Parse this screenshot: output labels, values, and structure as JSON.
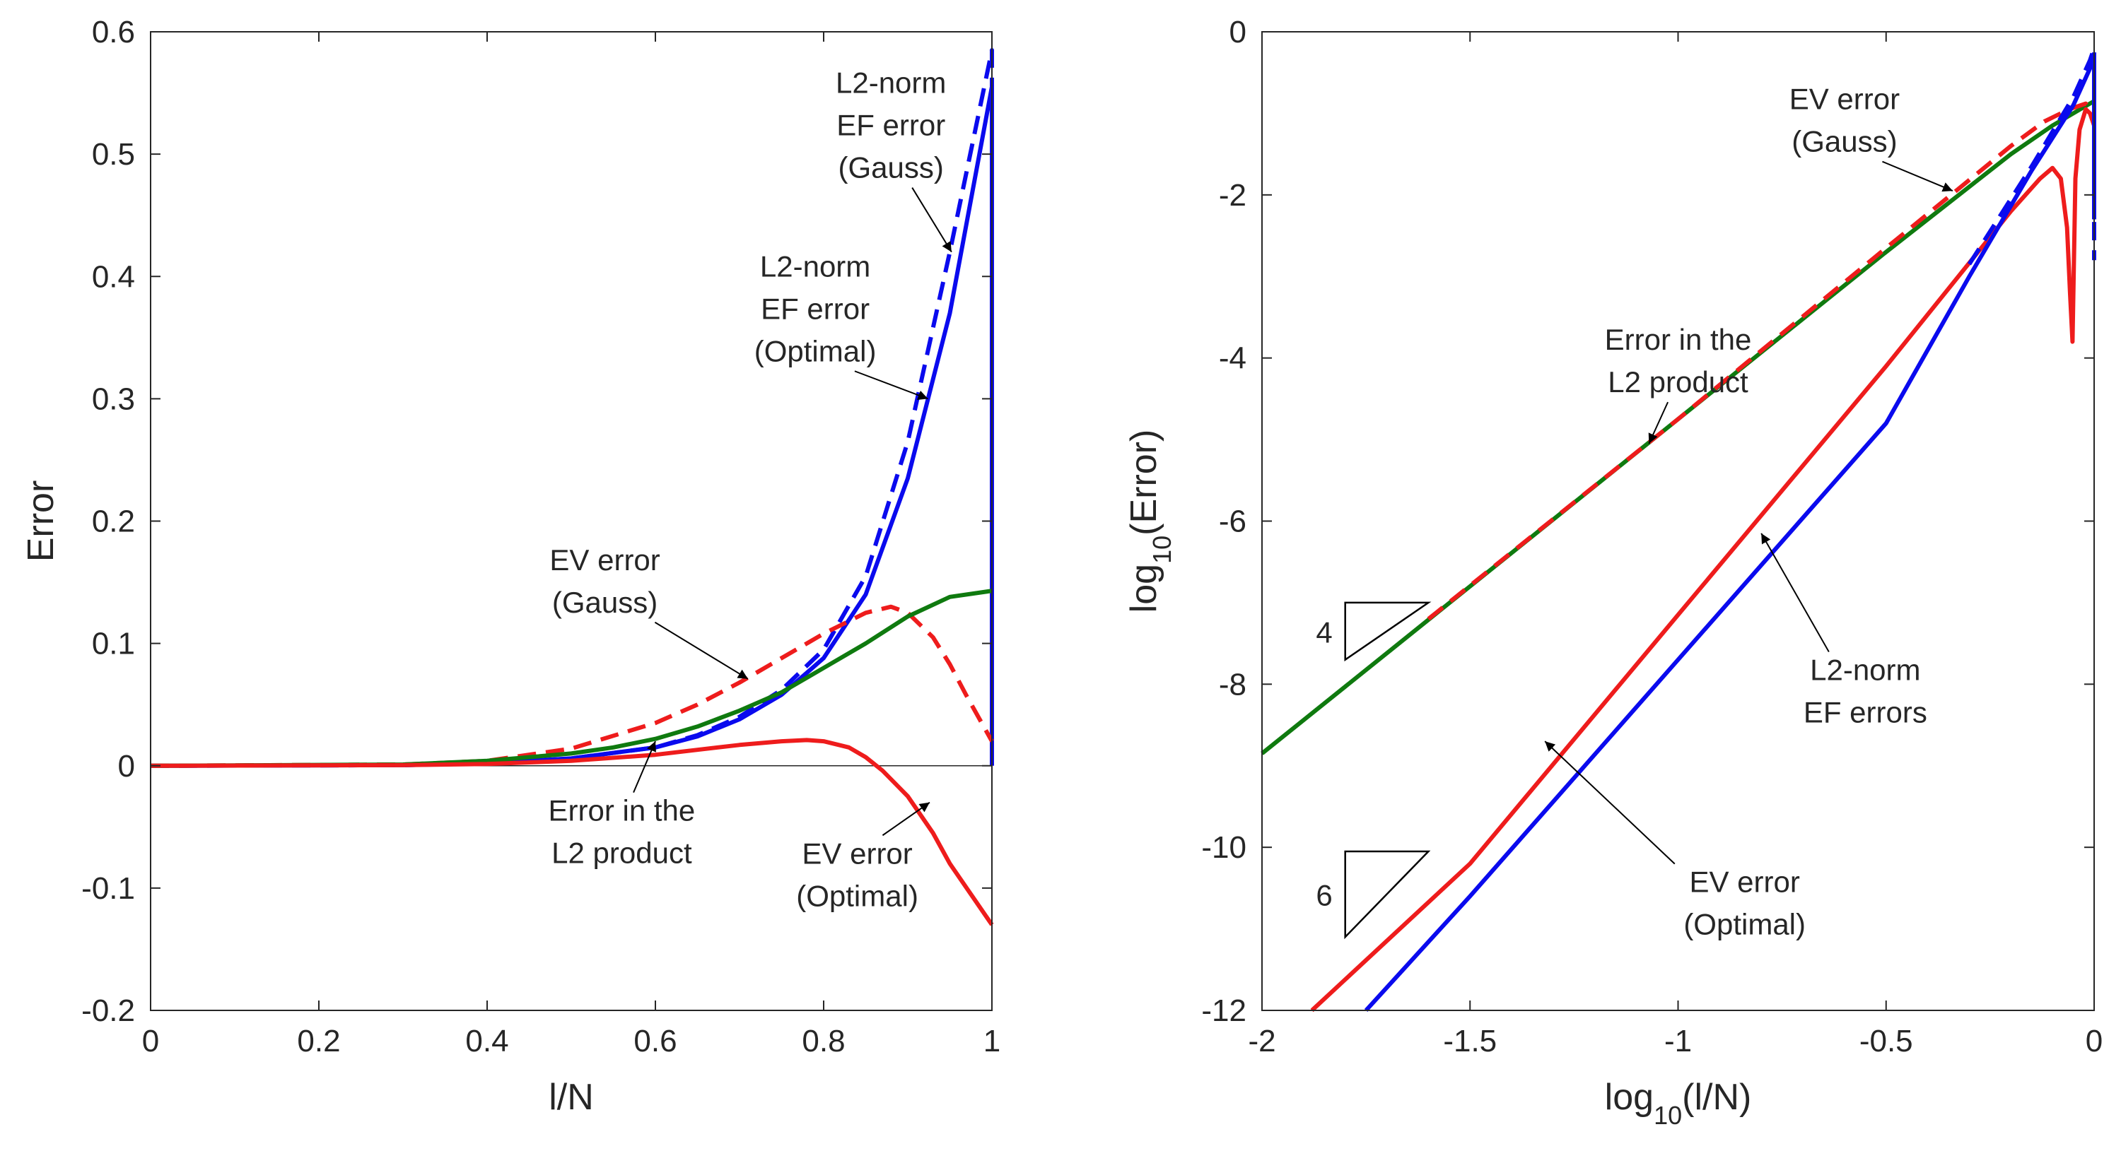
{
  "colors": {
    "blue": "#0a0aee",
    "red": "#ee1c1c",
    "green": "#0f7a0f",
    "axis": "#262626"
  },
  "chart_data": [
    {
      "type": "line",
      "xlabel": "l/N",
      "ylabel": "Error",
      "xlim": [
        0,
        1
      ],
      "ylim": [
        -0.2,
        0.6
      ],
      "xticks": [
        {
          "v": 0,
          "label": "0"
        },
        {
          "v": 0.2,
          "label": "0.2"
        },
        {
          "v": 0.4,
          "label": "0.4"
        },
        {
          "v": 0.6,
          "label": "0.6"
        },
        {
          "v": 0.8,
          "label": "0.8"
        },
        {
          "v": 1,
          "label": "1"
        }
      ],
      "yticks": [
        {
          "v": -0.2,
          "label": "-0.2"
        },
        {
          "v": -0.1,
          "label": "-0.1"
        },
        {
          "v": 0,
          "label": "0"
        },
        {
          "v": 0.1,
          "label": "0.1"
        },
        {
          "v": 0.2,
          "label": "0.2"
        },
        {
          "v": 0.3,
          "label": "0.3"
        },
        {
          "v": 0.4,
          "label": "0.4"
        },
        {
          "v": 0.5,
          "label": "0.5"
        },
        {
          "v": 0.6,
          "label": "0.6"
        }
      ],
      "zero_line": true,
      "series": [
        {
          "name": "L2-norm EF error (Gauss)",
          "color": "blue",
          "dash": true,
          "x": [
            0,
            0.3,
            0.4,
            0.5,
            0.6,
            0.65,
            0.7,
            0.75,
            0.8,
            0.85,
            0.9,
            0.95,
            1.0,
            1.0
          ],
          "y": [
            0,
            0.0005,
            0.002,
            0.006,
            0.015,
            0.025,
            0.04,
            0.062,
            0.095,
            0.155,
            0.265,
            0.42,
            0.585,
            0
          ]
        },
        {
          "name": "L2-norm EF error (Optimal)",
          "color": "blue",
          "dash": false,
          "x": [
            0,
            0.3,
            0.4,
            0.5,
            0.6,
            0.65,
            0.7,
            0.75,
            0.8,
            0.85,
            0.9,
            0.95,
            1.0,
            1.0
          ],
          "y": [
            0,
            0.0005,
            0.002,
            0.006,
            0.015,
            0.024,
            0.038,
            0.058,
            0.088,
            0.14,
            0.235,
            0.37,
            0.555,
            0.005
          ]
        },
        {
          "name": "EV error (Gauss)",
          "color": "red",
          "dash": true,
          "x": [
            0,
            0.3,
            0.4,
            0.5,
            0.6,
            0.65,
            0.7,
            0.75,
            0.8,
            0.85,
            0.88,
            0.9,
            0.93,
            0.95,
            0.97,
            1.0
          ],
          "y": [
            0,
            0.001,
            0.004,
            0.014,
            0.035,
            0.05,
            0.068,
            0.088,
            0.108,
            0.125,
            0.13,
            0.125,
            0.105,
            0.083,
            0.057,
            0.02
          ]
        },
        {
          "name": "Error in the L2 product",
          "color": "green",
          "dash": false,
          "x": [
            0,
            0.3,
            0.4,
            0.5,
            0.55,
            0.6,
            0.65,
            0.7,
            0.75,
            0.8,
            0.85,
            0.9,
            0.95,
            1.0
          ],
          "y": [
            0,
            0.001,
            0.004,
            0.01,
            0.015,
            0.022,
            0.032,
            0.045,
            0.06,
            0.08,
            0.1,
            0.122,
            0.138,
            0.143
          ]
        },
        {
          "name": "EV error (Optimal)",
          "color": "red",
          "dash": false,
          "x": [
            0,
            0.3,
            0.4,
            0.5,
            0.6,
            0.65,
            0.7,
            0.75,
            0.78,
            0.8,
            0.83,
            0.85,
            0.87,
            0.9,
            0.93,
            0.95,
            0.97,
            1.0
          ],
          "y": [
            0,
            0.0005,
            0.0015,
            0.004,
            0.009,
            0.013,
            0.017,
            0.02,
            0.021,
            0.02,
            0.015,
            0.007,
            -0.004,
            -0.025,
            -0.055,
            -0.08,
            -0.1,
            -0.13
          ]
        }
      ],
      "annotations": [
        {
          "lines": [
            "L2-norm",
            "EF error",
            "(Gauss)"
          ],
          "tx": 0.88,
          "ty": 0.55,
          "ax": 0.952,
          "ay": 0.42
        },
        {
          "lines": [
            "L2-norm",
            "EF error",
            "(Optimal)"
          ],
          "tx": 0.79,
          "ty": 0.4,
          "ax": 0.924,
          "ay": 0.3
        },
        {
          "lines": [
            "EV error",
            "(Gauss)"
          ],
          "tx": 0.54,
          "ty": 0.16,
          "ax": 0.71,
          "ay": 0.071
        },
        {
          "lines": [
            "Error in the",
            "L2 product"
          ],
          "tx": 0.56,
          "ty": -0.045,
          "ax": 0.6,
          "ay": 0.02
        },
        {
          "lines": [
            "EV error",
            "(Optimal)"
          ],
          "tx": 0.84,
          "ty": -0.08,
          "ax": 0.926,
          "ay": -0.03
        }
      ]
    },
    {
      "type": "line",
      "xlabel": "log10(l/N)",
      "ylabel": "log10(Error)",
      "xlim": [
        -2,
        0
      ],
      "ylim": [
        -12,
        0
      ],
      "xticks": [
        {
          "v": -2,
          "label": "-2"
        },
        {
          "v": -1.5,
          "label": "-1.5"
        },
        {
          "v": -1,
          "label": "-1"
        },
        {
          "v": -0.5,
          "label": "-0.5"
        },
        {
          "v": 0,
          "label": "0"
        }
      ],
      "yticks": [
        {
          "v": -12,
          "label": "-12"
        },
        {
          "v": -10,
          "label": "-10"
        },
        {
          "v": -8,
          "label": "-8"
        },
        {
          "v": -6,
          "label": "-6"
        },
        {
          "v": -4,
          "label": "-4"
        },
        {
          "v": -2,
          "label": "-2"
        },
        {
          "v": 0,
          "label": "0"
        }
      ],
      "series": [
        {
          "name": "Error in the L2 product",
          "color": "green",
          "dash": false,
          "x": [
            -2,
            -1.5,
            -1,
            -0.5,
            -0.2,
            -0.1,
            0
          ],
          "y": [
            -8.85,
            -6.8,
            -4.75,
            -2.7,
            -1.5,
            -1.15,
            -0.85
          ]
        },
        {
          "name": "EV error (Gauss)",
          "color": "red",
          "dash": true,
          "x": [
            -1.6,
            -1,
            -0.5,
            -0.2,
            -0.12,
            -0.06,
            -0.02,
            0
          ],
          "y": [
            -7.2,
            -4.75,
            -2.65,
            -1.4,
            -1.1,
            -0.95,
            -0.88,
            -1.1
          ]
        },
        {
          "name": "EV error (Optimal)",
          "color": "red",
          "dash": false,
          "x": [
            -1.88,
            -1.5,
            -1,
            -0.5,
            -0.2,
            -0.13,
            -0.1,
            -0.08,
            -0.065,
            -0.058,
            -0.052,
            -0.045,
            -0.035,
            -0.02,
            -0.01,
            0
          ],
          "y": [
            -12,
            -10.2,
            -7.15,
            -4.1,
            -2.2,
            -1.8,
            -1.67,
            -1.8,
            -2.4,
            -3.2,
            -3.8,
            -1.8,
            -1.2,
            -0.95,
            -1.0,
            -1.15
          ]
        },
        {
          "name": "L2-norm EF error (Gauss)",
          "color": "blue",
          "dash": true,
          "x": [
            -0.3,
            -0.15,
            -0.05,
            -0.01,
            0,
            0
          ],
          "y": [
            -2.85,
            -1.65,
            -0.8,
            -0.35,
            -0.2,
            -2.8
          ]
        },
        {
          "name": "L2-norm EF error (Optimal)",
          "color": "blue",
          "dash": false,
          "x": [
            -1.75,
            -1.5,
            -1,
            -0.5,
            -0.3,
            -0.15,
            -0.05,
            -0.01,
            0,
            0
          ],
          "y": [
            -12,
            -10.6,
            -7.7,
            -4.8,
            -3.0,
            -1.7,
            -0.9,
            -0.45,
            -0.3,
            -2.3
          ]
        }
      ],
      "slope_triangles": [
        {
          "label": "4",
          "x0": -1.8,
          "y0": -7.7,
          "x1": -1.6,
          "y1": -7.0
        },
        {
          "label": "6",
          "x0": -1.8,
          "y0": -11.1,
          "x1": -1.6,
          "y1": -10.05
        }
      ],
      "annotations": [
        {
          "lines": [
            "EV error",
            "(Gauss)"
          ],
          "tx": -0.6,
          "ty": -0.95,
          "ax": -0.34,
          "ay": -1.95
        },
        {
          "lines": [
            "Error in the",
            "L2 product"
          ],
          "tx": -1.0,
          "ty": -3.9,
          "ax": -1.07,
          "ay": -5.05
        },
        {
          "lines": [
            "L2-norm",
            "EF errors"
          ],
          "tx": -0.55,
          "ty": -7.95,
          "ax": -0.8,
          "ay": -6.15
        },
        {
          "lines": [
            "EV error",
            "(Optimal)"
          ],
          "tx": -0.84,
          "ty": -10.55,
          "ax": -1.32,
          "ay": -8.7
        }
      ]
    }
  ]
}
